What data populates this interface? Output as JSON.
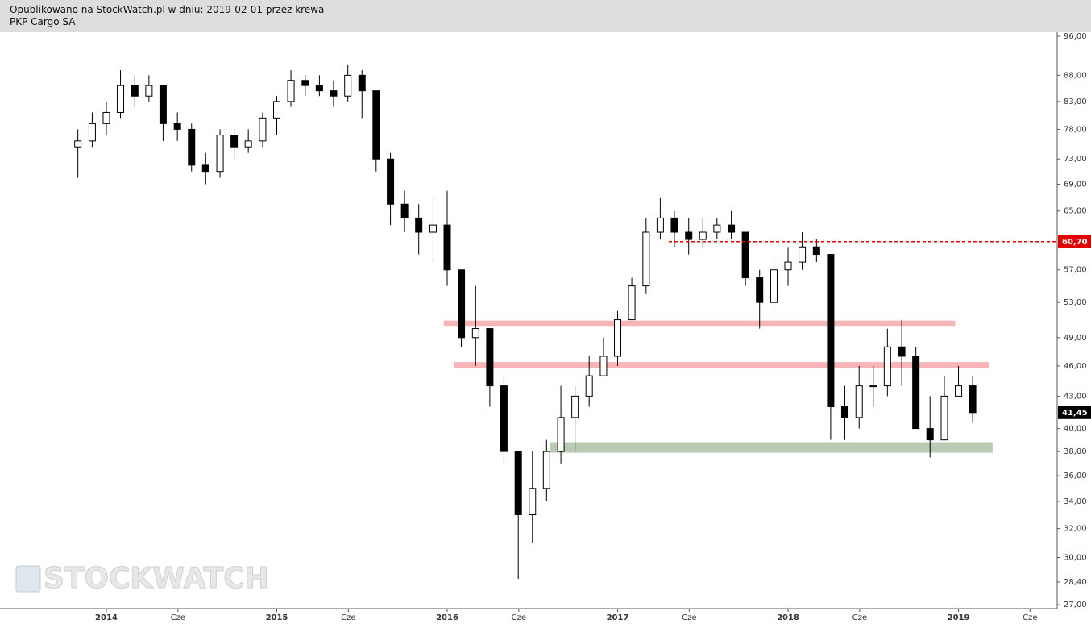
{
  "chart_data": {
    "type": "candlestick",
    "header": "Opublikowano na StockWatch.pl w dniu: 2019-02-01 przez krewa",
    "title": "PKP Cargo SA",
    "watermark": "STOCKWATCH",
    "log_scale": true,
    "up_color": "#ffffff",
    "down_color": "#000000",
    "x": [
      2013.833,
      2013.917,
      2014.0,
      2014.083,
      2014.167,
      2014.25,
      2014.333,
      2014.417,
      2014.5,
      2014.583,
      2014.667,
      2014.75,
      2014.833,
      2014.917,
      2015.0,
      2015.083,
      2015.167,
      2015.25,
      2015.333,
      2015.417,
      2015.5,
      2015.583,
      2015.667,
      2015.75,
      2015.833,
      2015.917,
      2016.0,
      2016.083,
      2016.167,
      2016.25,
      2016.333,
      2016.417,
      2016.5,
      2016.583,
      2016.667,
      2016.75,
      2016.833,
      2016.917,
      2017.0,
      2017.083,
      2017.167,
      2017.25,
      2017.333,
      2017.417,
      2017.5,
      2017.583,
      2017.667,
      2017.75,
      2017.833,
      2017.917,
      2018.0,
      2018.083,
      2018.167,
      2018.25,
      2018.333,
      2018.417,
      2018.5,
      2018.583,
      2018.667,
      2018.75,
      2018.833,
      2018.917,
      2019.0,
      2019.083
    ],
    "open": [
      75,
      76,
      79,
      81,
      86,
      84,
      86,
      79,
      78,
      72,
      71,
      77,
      75,
      76,
      80,
      83,
      87,
      86,
      85,
      84,
      88,
      85,
      73,
      66,
      64,
      62,
      63,
      57,
      49,
      50,
      44,
      38,
      33,
      35,
      38,
      41,
      43,
      45,
      47,
      51,
      55,
      62,
      64,
      62,
      61,
      62,
      63,
      62,
      56,
      53,
      57,
      58,
      60,
      59,
      42,
      41,
      44,
      44,
      48,
      47,
      40,
      39,
      43,
      44
    ],
    "high": [
      78,
      81,
      83,
      89,
      88,
      88,
      86,
      81,
      79,
      74,
      78,
      78,
      78,
      81,
      84,
      89,
      88,
      88,
      87,
      90,
      89,
      85,
      74,
      68,
      66,
      67,
      68,
      57,
      55,
      50,
      45,
      38,
      38,
      39,
      44,
      44,
      47,
      49,
      52,
      56,
      64,
      67,
      65,
      64,
      64,
      64,
      65,
      62,
      57,
      58,
      60,
      62,
      61,
      59,
      44,
      46,
      46,
      50,
      51,
      48,
      43,
      45,
      46,
      45
    ],
    "low": [
      70,
      75,
      77,
      80,
      82,
      83,
      76,
      76,
      71,
      69,
      70,
      73,
      74,
      75,
      77,
      82,
      84,
      84,
      82,
      83,
      80,
      71,
      63,
      62,
      59,
      58,
      55,
      48,
      46,
      42,
      37,
      28.6,
      31,
      34,
      37,
      38,
      42,
      45,
      46,
      51,
      54,
      61,
      60,
      59,
      60,
      61,
      61,
      55,
      50,
      52,
      55,
      57,
      58,
      39,
      39,
      40,
      42,
      43,
      44,
      40,
      37.5,
      39,
      43,
      40.5
    ],
    "close": [
      76,
      79,
      81,
      86,
      84,
      86,
      79,
      78,
      72,
      71,
      77,
      75,
      76,
      80,
      83,
      87,
      86,
      85,
      84,
      88,
      85,
      73,
      66,
      64,
      62,
      63,
      57,
      49,
      50,
      44,
      38,
      33,
      35,
      38,
      41,
      43,
      45,
      47,
      51,
      55,
      62,
      64,
      62,
      61,
      62,
      63,
      62,
      56,
      53,
      57,
      58,
      60,
      59,
      42,
      41,
      44,
      44,
      48,
      47,
      40,
      39,
      43,
      44,
      41.45
    ],
    "xlim": [
      2013.376,
      2019.579
    ],
    "ylim": [
      26.76,
      96.87
    ],
    "xticks": [
      2014,
      {
        "value": 2014.42,
        "label": "Cze"
      },
      2015,
      {
        "value": 2015.42,
        "label": "Cze"
      },
      2016,
      {
        "value": 2016.42,
        "label": "Cze"
      },
      2017,
      {
        "value": 2017.42,
        "label": "Cze"
      },
      2018,
      {
        "value": 2018.42,
        "label": "Cze"
      },
      2019,
      {
        "value": 2019.42,
        "label": "Cze"
      }
    ],
    "yticks": [
      {
        "value": 96,
        "label": "96,00"
      },
      {
        "value": 88,
        "label": "88,00"
      },
      {
        "value": 83,
        "label": "83,00"
      },
      {
        "value": 78,
        "label": "78,00"
      },
      {
        "value": 73,
        "label": "73,00"
      },
      {
        "value": 69,
        "label": "69,00"
      },
      {
        "value": 65,
        "label": "65,00"
      },
      {
        "value": 57,
        "label": "57,00"
      },
      {
        "value": 53,
        "label": "53,00"
      },
      {
        "value": 49,
        "label": "49,00"
      },
      {
        "value": 46,
        "label": "46,00"
      },
      {
        "value": 43,
        "label": "43,00"
      },
      {
        "value": 40,
        "label": "40,00"
      },
      {
        "value": 38,
        "label": "38,00"
      },
      {
        "value": 36,
        "label": "36,00"
      },
      {
        "value": 34,
        "label": "34,00"
      },
      {
        "value": 32,
        "label": "32,00"
      },
      {
        "value": 30,
        "label": "30,00"
      },
      {
        "value": 28.4,
        "label": "28,40"
      },
      {
        "value": 27,
        "label": "27,00"
      }
    ],
    "bands": [
      {
        "low": 50.3,
        "high": 50.9,
        "start": 2015.98,
        "end": 2018.98,
        "color": "#f7b5b5"
      },
      {
        "low": 45.8,
        "high": 46.4,
        "start": 2016.04,
        "end": 2019.18,
        "color": "#f7b5b5"
      },
      {
        "low": 37.9,
        "high": 38.8,
        "start": 2016.6,
        "end": 2019.2,
        "color": "#b9cbb4"
      }
    ],
    "price_line": {
      "value": 60.7,
      "label": "60,70",
      "start": 2017.3,
      "color": "#e00000"
    },
    "last_price": {
      "value": 41.45,
      "label": "41,45",
      "color": "#000000"
    }
  }
}
